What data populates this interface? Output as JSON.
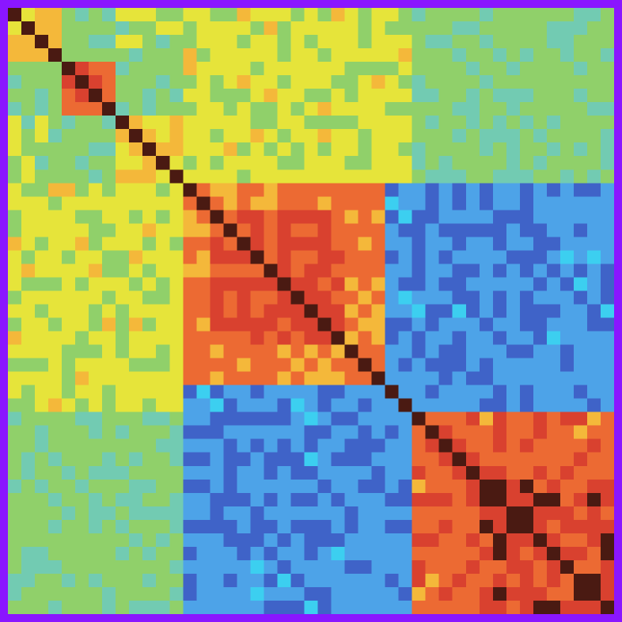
{
  "theme": {
    "frame_color": "#8a16ff",
    "diagonal_color": "#4a1a12",
    "colormap": [
      "#3f63c8",
      "#4da3e8",
      "#3ccff0",
      "#72cbb2",
      "#90d06a",
      "#e6e43a",
      "#f4b83a",
      "#ec6a33",
      "#d9412f",
      "#4a1a12"
    ]
  },
  "chart_data": {
    "type": "heatmap",
    "title": "",
    "xlabel": "",
    "ylabel": "",
    "grid": false,
    "legend": "none",
    "value_range": [
      -1,
      1
    ],
    "matrix_size": 45,
    "blocks": [
      {
        "start": 0,
        "end": 3,
        "strength": 0.45
      },
      {
        "start": 4,
        "end": 7,
        "strength": 0.75
      },
      {
        "start": 8,
        "end": 12,
        "strength": 0.38
      },
      {
        "start": 13,
        "end": 29,
        "strength": 0.6
      },
      {
        "start": 30,
        "end": 44,
        "strength": 0.72
      }
    ],
    "core_blocks": [
      {
        "start": 15,
        "end": 24,
        "strength": 0.78
      },
      {
        "start": 35,
        "end": 44,
        "strength": 0.88
      }
    ],
    "cross_blocks": [
      {
        "rows": [
          13,
          29
        ],
        "cols": [
          28,
          44
        ],
        "strength": -0.72
      },
      {
        "rows": [
          28,
          44
        ],
        "cols": [
          7,
          28
        ],
        "strength": -0.72
      },
      {
        "rows": [
          0,
          12
        ],
        "cols": [
          13,
          29
        ],
        "strength": 0.18
      },
      {
        "rows": [
          13,
          29
        ],
        "cols": [
          0,
          12
        ],
        "strength": 0.18
      },
      {
        "rows": [
          0,
          12
        ],
        "cols": [
          30,
          44
        ],
        "strength": -0.08
      },
      {
        "rows": [
          30,
          44
        ],
        "cols": [
          0,
          12
        ],
        "strength": -0.08
      }
    ],
    "diagonal_value": 1.0
  }
}
